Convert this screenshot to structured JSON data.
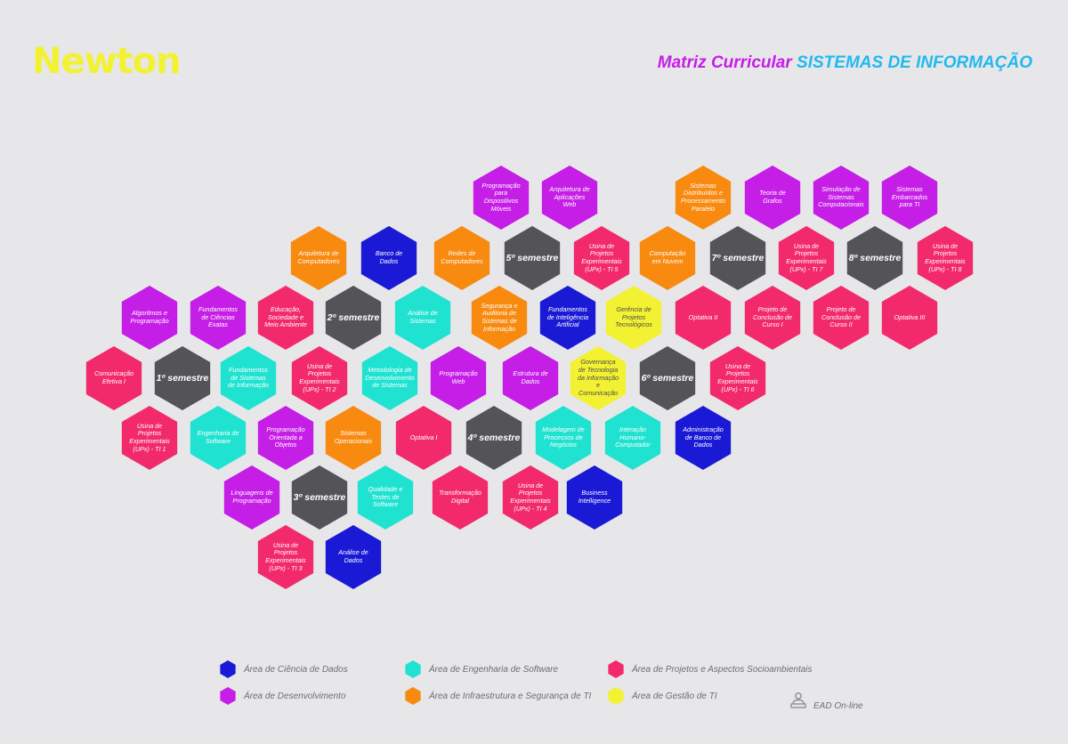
{
  "header": {
    "logo": "Newton",
    "title_prefix": "Matriz Curricular",
    "title_main": "SISTEMAS DE INFORMAÇÃO"
  },
  "colors": {
    "dados": "#1a1ad6",
    "desenvolvimento": "#c51ee6",
    "engenharia": "#1fe3d0",
    "projetos": "#f22a6c",
    "infraestrutura": "#f88a10",
    "gestao": "#f2f233",
    "semestre": "#545458"
  },
  "hexes": [
    {
      "label": "Programação para Dispositivos Móveis",
      "area": "dev"
    },
    {
      "label": "Arquitetura de Aplicações Web",
      "area": "dev"
    },
    {
      "label": "Sistemas Distribuídos e Processamento Paralelo",
      "area": "infra"
    },
    {
      "label": "Teoria de Grafos",
      "area": "dev"
    },
    {
      "label": "Simulação de Sistemas Computacionais",
      "area": "dev"
    },
    {
      "label": "Sistemas Embarcados para TI",
      "area": "dev"
    },
    {
      "label": "Arquitetura de Computadores",
      "area": "infra"
    },
    {
      "label": "Banco de Dados",
      "area": "dados"
    },
    {
      "label": "Redes de Computadores",
      "area": "infra"
    },
    {
      "label": "5º semestre",
      "area": "sem"
    },
    {
      "label": "Usina de Projetos Experimentais (UPx) - TI 5",
      "area": "proj"
    },
    {
      "label": "Computação em Nuvem",
      "area": "infra"
    },
    {
      "label": "7º semestre",
      "area": "sem"
    },
    {
      "label": "Usina de Projetos Experimentais (UPx) - TI 7",
      "area": "proj"
    },
    {
      "label": "8º semestre",
      "area": "sem"
    },
    {
      "label": "Usina de Projetos Experimentais (UPx) - TI 8",
      "area": "proj"
    },
    {
      "label": "Algoritmos e Programação",
      "area": "dev"
    },
    {
      "label": "Fundamentos de Ciências Exatas",
      "area": "dev"
    },
    {
      "label": "Educação, Sociedade e Meio Ambiente",
      "area": "proj"
    },
    {
      "label": "2º semestre",
      "area": "sem"
    },
    {
      "label": "Análise de Sistemas",
      "area": "eng"
    },
    {
      "label": "Segurança e Auditoria de Sistemas de Informação",
      "area": "infra"
    },
    {
      "label": "Fundamentos de Inteligência Artificial",
      "area": "dados"
    },
    {
      "label": "Gerência de Projetos Tecnológicos",
      "area": "gestao"
    },
    {
      "label": "Optativa II",
      "area": "proj"
    },
    {
      "label": "Projeto de Conclusão de Curso I",
      "area": "proj"
    },
    {
      "label": "Projeto de Conclusão de Curso II",
      "area": "proj"
    },
    {
      "label": "Optativa III",
      "area": "proj"
    },
    {
      "label": "Comunicação Efetiva I",
      "area": "proj"
    },
    {
      "label": "1º semestre",
      "area": "sem"
    },
    {
      "label": "Fundamentos de Sistemas de Informação",
      "area": "eng"
    },
    {
      "label": "Usina de Projetos Experimentais (UPx) - TI 2",
      "area": "proj"
    },
    {
      "label": "Metodologia de Desenvolvimento de Sistemas",
      "area": "eng"
    },
    {
      "label": "Programação Web",
      "area": "dev"
    },
    {
      "label": "Estrutura de Dados",
      "area": "dev"
    },
    {
      "label": "Governança de Tecnologia da Informação e Comunicação",
      "area": "gestao"
    },
    {
      "label": "6º semestre",
      "area": "sem"
    },
    {
      "label": "Usina de Projetos Experimentais (UPx) - TI 6",
      "area": "proj"
    },
    {
      "label": "Usina de Projetos Experimentais (UPx) - TI 1",
      "area": "proj"
    },
    {
      "label": "Engenharia de Software",
      "area": "eng"
    },
    {
      "label": "Programação Orientada a Objetos",
      "area": "dev"
    },
    {
      "label": "Sistemas Operacionais",
      "area": "infra"
    },
    {
      "label": "Optativa I",
      "area": "proj"
    },
    {
      "label": "4º semestre",
      "area": "sem"
    },
    {
      "label": "Modelagem de Processos de Negócios",
      "area": "eng"
    },
    {
      "label": "Interação Humano-Computador",
      "area": "eng"
    },
    {
      "label": "Administração de Banco de Dados",
      "area": "dados"
    },
    {
      "label": "Linguagens de Programação",
      "area": "dev"
    },
    {
      "label": "3º semestre",
      "area": "sem"
    },
    {
      "label": "Qualidade e Testes de Software",
      "area": "eng"
    },
    {
      "label": "Transformação Digital",
      "area": "proj"
    },
    {
      "label": "Usina de Projetos Experimentais (UPx) - TI 4",
      "area": "proj"
    },
    {
      "label": "Business Intelligence",
      "area": "dados"
    },
    {
      "label": "Usina de Projetos Experimentais (UPx) - TI 3",
      "area": "proj"
    },
    {
      "label": "Análise de Dados",
      "area": "dados"
    }
  ],
  "legend": [
    {
      "label": "Área de Ciência de Dados",
      "area": "dados"
    },
    {
      "label": "Área de Engenharia de Software",
      "area": "eng"
    },
    {
      "label": "Área de Projetos e Aspectos Socioambientais",
      "area": "proj"
    },
    {
      "label": "Área de Desenvolvimento",
      "area": "dev"
    },
    {
      "label": "Área de Infraestrutura e Segurança de TI",
      "area": "infra"
    },
    {
      "label": "Área de Gestão de TI",
      "area": "gestao"
    }
  ],
  "ead": {
    "label": "EAD On-line",
    "icon": "person-laptop-icon"
  }
}
